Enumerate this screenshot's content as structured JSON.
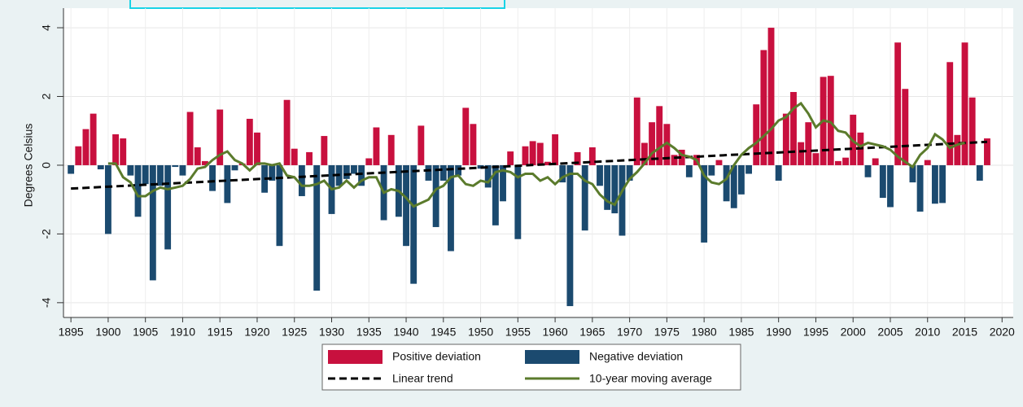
{
  "chart_data": {
    "type": "bar",
    "ylabel": "Degrees Celsius",
    "x": [
      1895,
      1896,
      1897,
      1898,
      1899,
      1900,
      1901,
      1902,
      1903,
      1904,
      1905,
      1906,
      1907,
      1908,
      1909,
      1910,
      1911,
      1912,
      1913,
      1914,
      1915,
      1916,
      1917,
      1918,
      1919,
      1920,
      1921,
      1922,
      1923,
      1924,
      1925,
      1926,
      1927,
      1928,
      1929,
      1930,
      1931,
      1932,
      1933,
      1934,
      1935,
      1936,
      1937,
      1938,
      1939,
      1940,
      1941,
      1942,
      1943,
      1944,
      1945,
      1946,
      1947,
      1948,
      1949,
      1950,
      1951,
      1952,
      1953,
      1954,
      1955,
      1956,
      1957,
      1958,
      1959,
      1960,
      1961,
      1962,
      1963,
      1964,
      1965,
      1966,
      1967,
      1968,
      1969,
      1970,
      1971,
      1972,
      1973,
      1974,
      1975,
      1976,
      1977,
      1978,
      1979,
      1980,
      1981,
      1982,
      1983,
      1984,
      1985,
      1986,
      1987,
      1988,
      1989,
      1990,
      1991,
      1992,
      1993,
      1994,
      1995,
      1996,
      1997,
      1998,
      1999,
      2000,
      2001,
      2002,
      2003,
      2004,
      2005,
      2006,
      2007,
      2008,
      2009,
      2010,
      2011,
      2012,
      2013,
      2014,
      2015,
      2016,
      2017,
      2018
    ],
    "values": [
      -0.25,
      0.55,
      1.05,
      1.5,
      -0.12,
      -2.0,
      0.9,
      0.78,
      -0.3,
      -1.5,
      -0.55,
      -3.35,
      -0.6,
      -2.45,
      -0.05,
      -0.3,
      1.55,
      0.52,
      0.12,
      -0.75,
      1.62,
      -1.1,
      -0.15,
      0.05,
      1.35,
      0.95,
      -0.8,
      -0.45,
      -2.35,
      1.9,
      0.48,
      -0.9,
      0.38,
      -3.65,
      0.85,
      -1.42,
      -0.6,
      -0.4,
      -0.25,
      -0.6,
      0.2,
      1.1,
      -1.6,
      0.88,
      -1.5,
      -2.35,
      -3.45,
      1.15,
      -0.45,
      -1.8,
      -0.45,
      -2.5,
      -0.3,
      1.67,
      1.2,
      -0.1,
      -0.65,
      -1.75,
      -1.05,
      0.4,
      -2.15,
      0.55,
      0.7,
      0.65,
      0.1,
      0.9,
      -0.5,
      -4.1,
      0.38,
      -1.9,
      0.52,
      -0.6,
      -1.3,
      -1.4,
      -2.05,
      -0.45,
      1.97,
      0.65,
      1.25,
      1.72,
      1.2,
      0.3,
      0.45,
      -0.35,
      0.3,
      -2.25,
      -0.3,
      0.15,
      -1.05,
      -1.25,
      -0.85,
      -0.25,
      1.77,
      3.35,
      4.0,
      -0.45,
      1.5,
      2.13,
      0.67,
      1.25,
      0.35,
      2.57,
      2.6,
      0.12,
      0.22,
      1.47,
      0.95,
      -0.35,
      0.2,
      -0.95,
      -1.22,
      3.57,
      2.22,
      -0.5,
      -1.35,
      0.15,
      -1.12,
      -1.1,
      3.0,
      0.88,
      3.57,
      1.97,
      -0.45,
      0.78
    ],
    "legend": [
      {
        "name": "Positive deviation",
        "color": "#c8103e"
      },
      {
        "name": "Negative deviation",
        "color": "#1b4a6f"
      }
    ],
    "lines": [
      {
        "name": "Linear trend",
        "color": "#000000",
        "dashed": true,
        "x": [
          1895,
          2018
        ],
        "values": [
          -0.68,
          0.68
        ]
      },
      {
        "name": "10-year moving average",
        "color": "#5b7b2c",
        "dashed": false,
        "x": [
          1900,
          1901,
          1902,
          1903,
          1904,
          1905,
          1906,
          1907,
          1908,
          1909,
          1910,
          1911,
          1912,
          1913,
          1914,
          1915,
          1916,
          1917,
          1918,
          1919,
          1920,
          1921,
          1922,
          1923,
          1924,
          1925,
          1926,
          1927,
          1928,
          1929,
          1930,
          1931,
          1932,
          1933,
          1934,
          1935,
          1936,
          1937,
          1938,
          1939,
          1940,
          1941,
          1942,
          1943,
          1944,
          1945,
          1946,
          1947,
          1948,
          1949,
          1950,
          1951,
          1952,
          1953,
          1954,
          1955,
          1956,
          1957,
          1958,
          1959,
          1960,
          1961,
          1962,
          1963,
          1964,
          1965,
          1966,
          1967,
          1968,
          1969,
          1970,
          1971,
          1972,
          1973,
          1974,
          1975,
          1976,
          1977,
          1978,
          1979,
          1980,
          1981,
          1982,
          1983,
          1984,
          1985,
          1986,
          1987,
          1988,
          1989,
          1990,
          1991,
          1992,
          1993,
          1994,
          1995,
          1996,
          1997,
          1998,
          1999,
          2000,
          2001,
          2002,
          2003,
          2004,
          2005,
          2006,
          2007,
          2008,
          2009,
          2010,
          2011,
          2012,
          2013,
          2014,
          2015
        ],
        "values": [
          0.05,
          0.05,
          -0.35,
          -0.5,
          -0.9,
          -0.9,
          -0.75,
          -0.65,
          -0.7,
          -0.65,
          -0.6,
          -0.4,
          -0.1,
          -0.05,
          0.15,
          0.3,
          0.4,
          0.15,
          0.05,
          -0.15,
          0.05,
          0.05,
          0.0,
          0.05,
          -0.3,
          -0.35,
          -0.6,
          -0.6,
          -0.55,
          -0.45,
          -0.7,
          -0.65,
          -0.45,
          -0.65,
          -0.45,
          -0.35,
          -0.35,
          -0.8,
          -0.7,
          -0.75,
          -0.95,
          -1.2,
          -1.1,
          -1.0,
          -0.7,
          -0.6,
          -0.35,
          -0.3,
          -0.55,
          -0.6,
          -0.45,
          -0.5,
          -0.2,
          -0.15,
          -0.2,
          -0.35,
          -0.25,
          -0.25,
          -0.45,
          -0.35,
          -0.55,
          -0.35,
          -0.25,
          -0.25,
          -0.45,
          -0.55,
          -0.85,
          -1.05,
          -1.15,
          -0.75,
          -0.4,
          -0.2,
          0.05,
          0.35,
          0.5,
          0.65,
          0.5,
          0.3,
          0.25,
          0.15,
          -0.3,
          -0.5,
          -0.55,
          -0.4,
          0.0,
          0.3,
          0.5,
          0.65,
          0.85,
          1.05,
          1.3,
          1.4,
          1.65,
          1.8,
          1.5,
          1.1,
          1.3,
          1.25,
          1.0,
          0.95,
          0.7,
          0.55,
          0.65,
          0.6,
          0.55,
          0.45,
          0.25,
          0.1,
          -0.05,
          0.3,
          0.5,
          0.9,
          0.75,
          0.5,
          0.6,
          0.65
        ]
      }
    ],
    "xlim": [
      1894,
      2021.5
    ],
    "xticks": [
      1895,
      1900,
      1905,
      1910,
      1915,
      1920,
      1925,
      1930,
      1935,
      1940,
      1945,
      1950,
      1955,
      1960,
      1965,
      1970,
      1975,
      1980,
      1985,
      1990,
      1995,
      2000,
      2005,
      2010,
      2015,
      2020
    ],
    "ylim": [
      -4.43,
      4.57
    ],
    "yticks": [
      -4,
      -2,
      0,
      2,
      4
    ],
    "grid": true
  }
}
